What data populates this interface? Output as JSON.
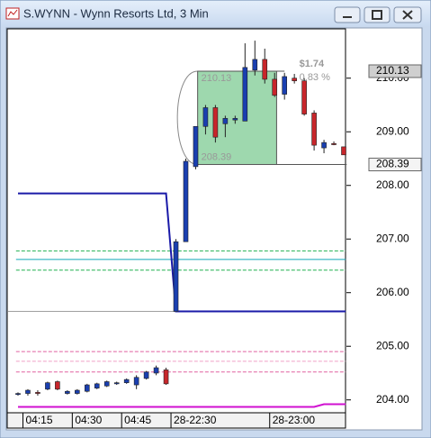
{
  "window": {
    "title": "S.WYNN - Wynn Resorts Ltd, 3 Min"
  },
  "chart_data": {
    "type": "candlestick",
    "up_color": "#1a3fb0",
    "down_color": "#c8262b",
    "ylim": [
      203.76,
      210.92
    ],
    "yticks": [
      {
        "value": 204,
        "label": "204.00"
      },
      {
        "value": 205,
        "label": "205.00"
      },
      {
        "value": 206,
        "label": "206.00"
      },
      {
        "value": 207,
        "label": "207.00"
      },
      {
        "value": 208,
        "label": "208.00"
      },
      {
        "value": 209,
        "label": "209.00"
      },
      {
        "value": 210,
        "label": "210.00"
      }
    ],
    "xticks": [
      {
        "value": 1,
        "label": "04:15"
      },
      {
        "value": 6,
        "label": "04:30"
      },
      {
        "value": 11,
        "label": "04:45"
      },
      {
        "value": 16,
        "label": "28-22:30"
      },
      {
        "value": 26,
        "label": "28-23:00"
      }
    ],
    "open": [
      204.1,
      204.12,
      204.14,
      204.2,
      204.34,
      204.12,
      204.12,
      204.16,
      204.22,
      204.26,
      204.3,
      204.32,
      204.28,
      204.4,
      204.5,
      204.56,
      205.65,
      206.95,
      208.35,
      209.1,
      209.45,
      209.15,
      209.22,
      209.2,
      210.15,
      210.35,
      209.98,
      209.7,
      210.0,
      209.95,
      209.35,
      208.7,
      208.78,
      208.72
    ],
    "high": [
      204.14,
      204.2,
      204.18,
      204.34,
      204.36,
      204.18,
      204.2,
      204.3,
      204.32,
      204.36,
      204.34,
      204.4,
      204.46,
      204.54,
      204.64,
      204.6,
      207.0,
      208.5,
      209.1,
      209.5,
      209.5,
      209.3,
      209.3,
      210.65,
      210.7,
      210.55,
      210.1,
      210.1,
      210.08,
      210.0,
      209.4,
      208.85,
      208.82,
      208.72
    ],
    "low": [
      204.08,
      204.08,
      204.08,
      204.18,
      204.18,
      204.1,
      204.1,
      204.14,
      204.2,
      204.24,
      204.28,
      204.3,
      204.2,
      204.38,
      204.46,
      204.28,
      205.65,
      206.95,
      208.3,
      208.95,
      208.8,
      208.9,
      209.15,
      209.2,
      210.05,
      209.9,
      209.65,
      209.6,
      209.9,
      209.3,
      208.65,
      208.6,
      208.75,
      208.57
    ],
    "close": [
      204.12,
      204.18,
      204.12,
      204.32,
      204.2,
      204.16,
      204.18,
      204.28,
      204.3,
      204.34,
      204.32,
      204.38,
      204.42,
      204.52,
      204.6,
      204.3,
      206.95,
      208.45,
      209.1,
      209.45,
      208.9,
      209.25,
      209.25,
      210.2,
      210.35,
      209.98,
      209.68,
      210.03,
      209.95,
      209.33,
      208.75,
      208.8,
      208.76,
      208.57
    ],
    "lines": [
      {
        "color": "#1a1aa8",
        "width": 2,
        "x": [
          0,
          15,
          16,
          33.2
        ],
        "values": [
          207.85,
          207.85,
          205.65,
          205.65
        ]
      },
      {
        "color": "#d010d0",
        "width": 2,
        "x": [
          0,
          30,
          31,
          33.2
        ],
        "values": [
          203.87,
          203.87,
          203.92,
          203.92
        ]
      }
    ],
    "levels": [
      {
        "value": 206.78,
        "color": "#20b050",
        "dash": true,
        "from": -0.2,
        "to": 33.2
      },
      {
        "value": 206.62,
        "color": "#10a8b8",
        "dash": false,
        "from": -0.2,
        "to": 33.2
      },
      {
        "value": 206.42,
        "color": "#20b050",
        "dash": true,
        "from": -0.2,
        "to": 33.2
      },
      {
        "value": 205.65,
        "color": "#a0a0a0",
        "dash": false,
        "from": -1,
        "to": 16
      },
      {
        "value": 204.9,
        "color": "#e060a0",
        "dash": true,
        "from": -0.2,
        "to": 33.2
      },
      {
        "value": 204.72,
        "color": "#f0a0c8",
        "dash": true,
        "from": -0.2,
        "to": 33.2
      },
      {
        "value": 204.52,
        "color": "#e060a0",
        "dash": true,
        "from": -0.2,
        "to": 33.2
      }
    ],
    "measure": {
      "from": 18.2,
      "to": 26.2,
      "high": {
        "value": 210.13,
        "label": "210.13"
      },
      "low": {
        "value": 208.39,
        "label": "208.39"
      },
      "change_label": "$1.74",
      "percent_label": "0.83 %"
    },
    "price_markers": [
      {
        "value": 210.13,
        "label": "210.13"
      },
      {
        "value": 208.39,
        "label": "208.39"
      }
    ]
  }
}
